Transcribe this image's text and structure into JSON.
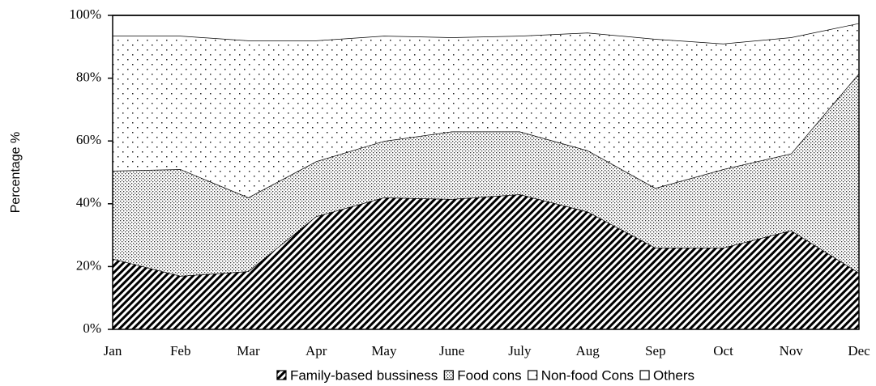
{
  "chart_data": {
    "type": "stacked-area",
    "y_label": "Percentage %",
    "categories": [
      "Jan",
      "Feb",
      "Mar",
      "Apr",
      "May",
      "June",
      "July",
      "Aug",
      "Sep",
      "Oct",
      "Nov",
      "Dec"
    ],
    "series": [
      {
        "name": "Family-based bussiness",
        "color": "#000000",
        "pattern": "hatch",
        "values": [
          22.5,
          17,
          18.5,
          36,
          42,
          41.5,
          43,
          37.5,
          26,
          26,
          31.5,
          18
        ]
      },
      {
        "name": "Food cons",
        "color": "#000000",
        "pattern": "dense-dots",
        "values": [
          28,
          34,
          23.5,
          17.5,
          18,
          21.5,
          20,
          19.5,
          19,
          25,
          24.5,
          63.5
        ]
      },
      {
        "name": "Non-food Cons",
        "color": "#000000",
        "pattern": "sparse-dots",
        "values": [
          43,
          42.5,
          50,
          38.5,
          33.5,
          30,
          30.5,
          37.5,
          47.5,
          40,
          37,
          16
        ]
      },
      {
        "name": "Others",
        "color": "#000000",
        "pattern": "none",
        "values": [
          6.5,
          6.5,
          8,
          8,
          6.5,
          7,
          6.5,
          5.5,
          7.5,
          9,
          7,
          2.5
        ]
      }
    ],
    "ylim": [
      0,
      100
    ],
    "yticks": [
      {
        "value": 0,
        "label": "0%"
      },
      {
        "value": 20,
        "label": "20%"
      },
      {
        "value": 40,
        "label": "40%"
      },
      {
        "value": 60,
        "label": "60%"
      },
      {
        "value": 80,
        "label": "80%"
      },
      {
        "value": 100,
        "label": "100%"
      }
    ],
    "legend": "bottom"
  }
}
